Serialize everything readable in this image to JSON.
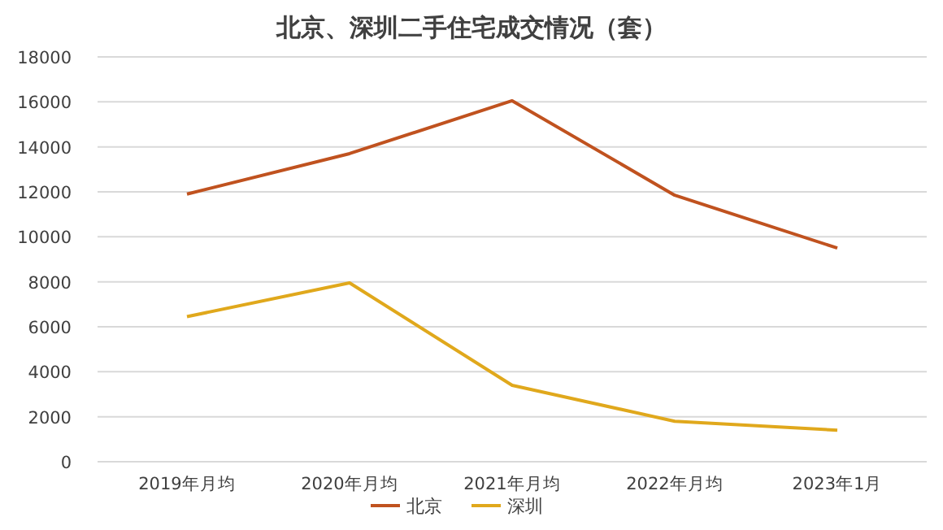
{
  "chart_data": {
    "type": "line",
    "title": "北京、深圳二手住宅成交情况（套）",
    "categories": [
      "2019年月均",
      "2020年月均",
      "2021年月均",
      "2022年月均",
      "2023年1月"
    ],
    "series": [
      {
        "name": "北京",
        "color": "#c0521f",
        "values": [
          11900,
          13700,
          16050,
          11850,
          9500
        ]
      },
      {
        "name": "深圳",
        "color": "#e0a81c",
        "values": [
          6450,
          7950,
          3400,
          1800,
          1400
        ]
      }
    ],
    "ylim": [
      0,
      18000
    ],
    "yticks": [
      0,
      2000,
      4000,
      6000,
      8000,
      10000,
      12000,
      14000,
      16000,
      18000
    ],
    "grid": "y",
    "legend": "bottom",
    "marker": "none",
    "line_style": "solid"
  }
}
